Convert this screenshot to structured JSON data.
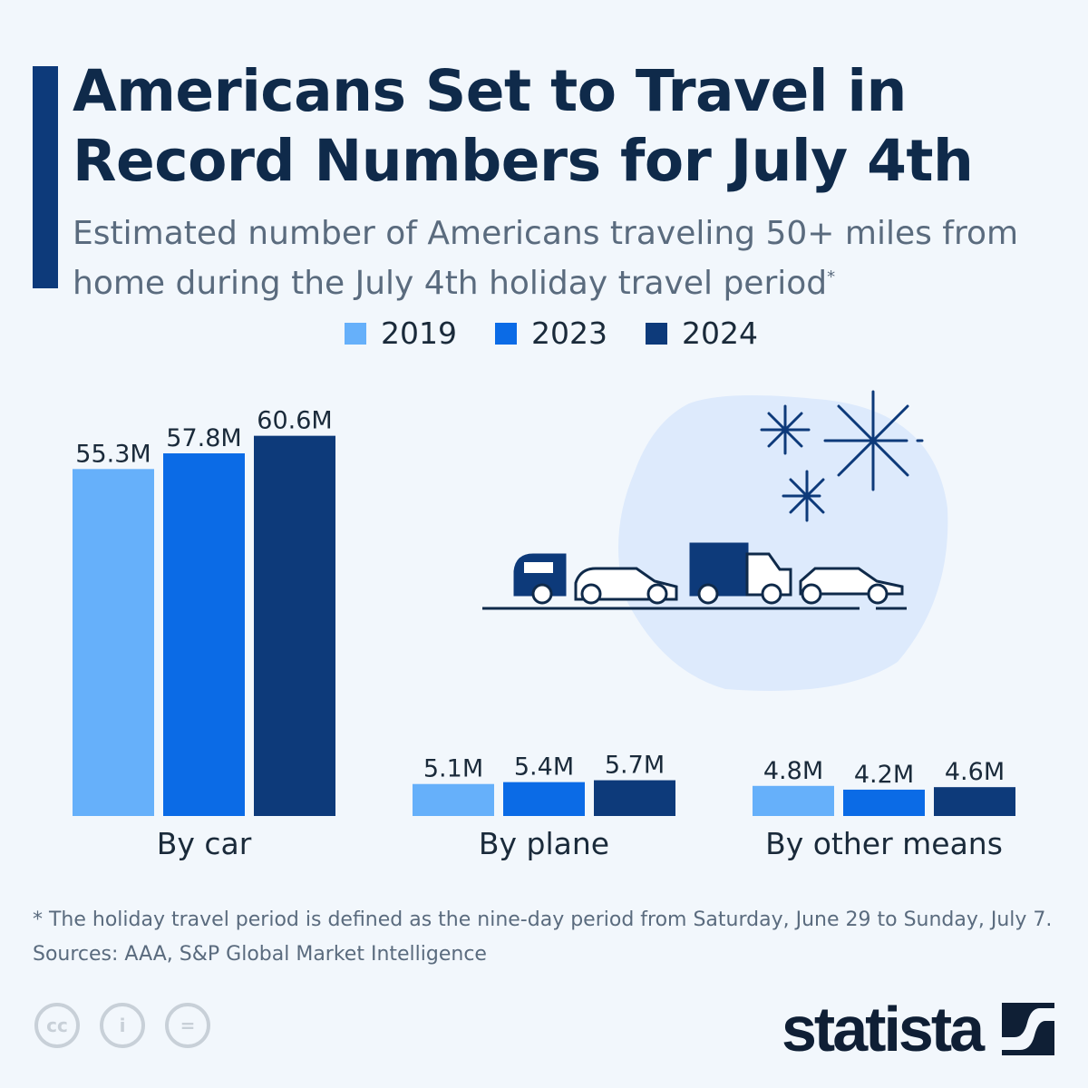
{
  "title": "Americans Set to Travel in Record Numbers for July 4th",
  "subtitle": "Estimated number of Americans traveling 50+ miles from home during the July 4th holiday travel period",
  "subtitle_mark": "*",
  "footnote": "* The holiday travel period is defined as the nine-day period from Saturday, June 29 to Sunday, July 7.",
  "sources": "Sources: AAA, S&P Global Market Intelligence",
  "brand": "statista",
  "license_icons": [
    "cc-icon",
    "attribution-icon",
    "no-derivatives-icon"
  ],
  "chart_data": {
    "type": "bar",
    "categories": [
      "By car",
      "By plane",
      "By other means"
    ],
    "series": [
      {
        "name": "2019",
        "color": "#66b0fa",
        "values": [
          55.3,
          5.1,
          4.8
        ],
        "labels": [
          "55.3M",
          "5.1M",
          "4.8M"
        ]
      },
      {
        "name": "2023",
        "color": "#0b6be6",
        "values": [
          57.8,
          5.4,
          4.2
        ],
        "labels": [
          "57.8M",
          "5.4M",
          "4.2M"
        ]
      },
      {
        "name": "2024",
        "color": "#0d3a7a",
        "values": [
          60.6,
          5.7,
          4.6
        ],
        "labels": [
          "60.6M",
          "5.7M",
          "4.6M"
        ]
      }
    ],
    "unit": "M",
    "legend": "top",
    "grid": false
  }
}
